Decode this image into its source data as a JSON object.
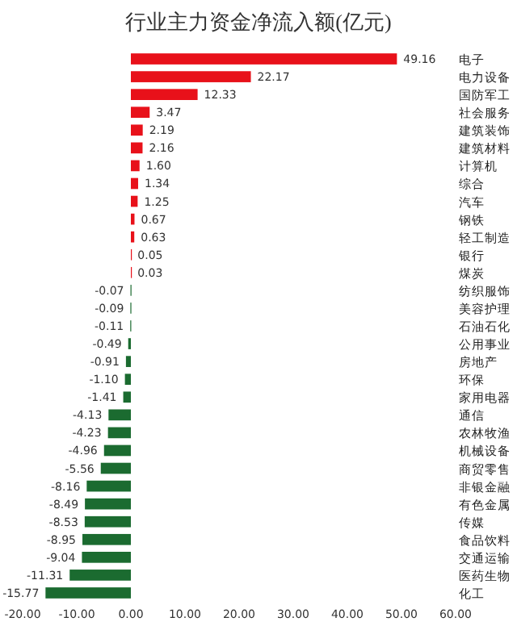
{
  "chart_data": {
    "type": "bar",
    "orientation": "horizontal",
    "title": "行业主力资金净流入额(亿元)",
    "categories": [
      "电子",
      "电力设备",
      "国防军工",
      "社会服务",
      "建筑装饰",
      "建筑材料",
      "计算机",
      "综合",
      "汽车",
      "钢铁",
      "轻工制造",
      "银行",
      "煤炭",
      "纺织服饰",
      "美容护理",
      "石油石化",
      "公用事业",
      "房地产",
      "环保",
      "家用电器",
      "通信",
      "农林牧渔",
      "机械设备",
      "商贸零售",
      "非银金融",
      "有色金属",
      "传媒",
      "食品饮料",
      "交通运输",
      "医药生物",
      "化工"
    ],
    "values": [
      49.16,
      22.17,
      12.33,
      3.47,
      2.19,
      2.16,
      1.6,
      1.34,
      1.25,
      0.67,
      0.63,
      0.05,
      0.03,
      -0.07,
      -0.09,
      -0.11,
      -0.49,
      -0.91,
      -1.1,
      -1.41,
      -4.13,
      -4.23,
      -4.96,
      -5.56,
      -8.16,
      -8.49,
      -8.53,
      -8.95,
      -9.04,
      -11.31,
      -15.77
    ],
    "value_labels": [
      "49.16",
      "22.17",
      "12.33",
      "3.47",
      "2.19",
      "2.16",
      "1.60",
      "1.34",
      "1.25",
      "0.67",
      "0.63",
      "0.05",
      "0.03",
      "-0.07",
      "-0.09",
      "-0.11",
      "-0.49",
      "-0.91",
      "-1.10",
      "-1.41",
      "-4.13",
      "-4.23",
      "-4.96",
      "-5.56",
      "-8.16",
      "-8.49",
      "-8.53",
      "-8.95",
      "-9.04",
      "-11.31",
      "-15.77"
    ],
    "colors": [
      "#e8111a",
      "#e8111a",
      "#e8111a",
      "#e8111a",
      "#e8111a",
      "#e8111a",
      "#e8111a",
      "#e8111a",
      "#e8111a",
      "#e8111a",
      "#e8111a",
      "#e8111a",
      "#e8111a",
      "#1b6b30",
      "#1b6b30",
      "#1b6b30",
      "#1b6b30",
      "#1b6b30",
      "#1b6b30",
      "#1b6b30",
      "#1b6b30",
      "#1b6b30",
      "#1b6b30",
      "#1b6b30",
      "#1b6b30",
      "#1b6b30",
      "#1b6b30",
      "#1b6b30",
      "#1b6b30",
      "#1b6b30",
      "#1b6b30"
    ],
    "xlim": [
      -20,
      60
    ],
    "xticks": [
      {
        "value": -20,
        "label": "-20.00"
      },
      {
        "value": -10,
        "label": "-10.00"
      },
      {
        "value": 0,
        "label": "0.00"
      },
      {
        "value": 10,
        "label": "10.00"
      },
      {
        "value": 20,
        "label": "20.00"
      },
      {
        "value": 30,
        "label": "30.00"
      },
      {
        "value": 40,
        "label": "40.00"
      },
      {
        "value": 50,
        "label": "50.00"
      },
      {
        "value": 60,
        "label": "60.00"
      }
    ],
    "grid": false
  }
}
